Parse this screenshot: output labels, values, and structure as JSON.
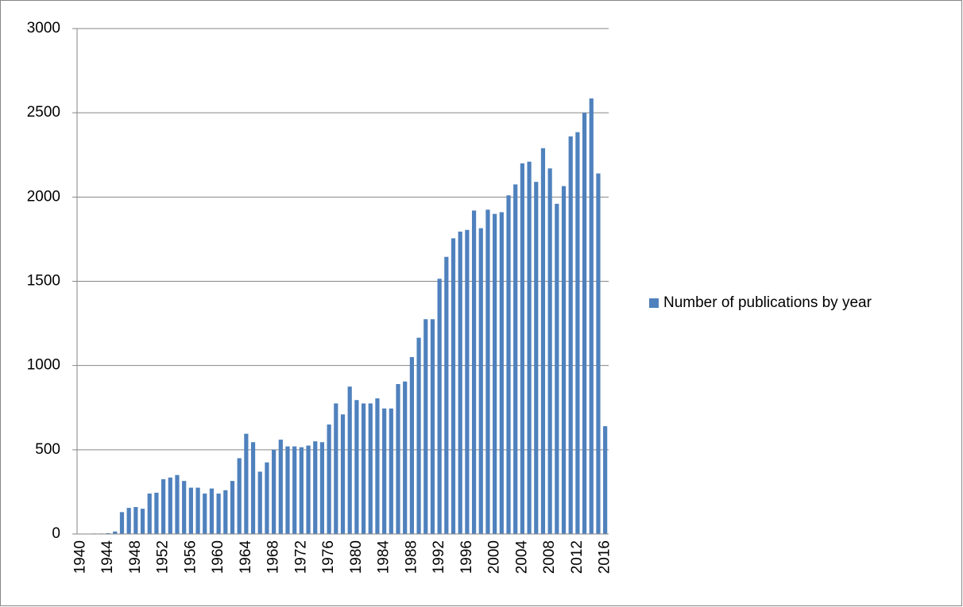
{
  "chart_data": {
    "type": "bar",
    "categories": [
      "1940",
      null,
      null,
      null,
      "1944",
      null,
      null,
      null,
      "1948",
      null,
      null,
      null,
      "1952",
      null,
      null,
      null,
      "1956",
      null,
      null,
      null,
      "1960",
      null,
      null,
      null,
      "1964",
      null,
      null,
      null,
      "1968",
      null,
      null,
      null,
      "1972",
      null,
      null,
      null,
      "1976",
      null,
      null,
      null,
      "1980",
      null,
      null,
      null,
      "1984",
      null,
      null,
      null,
      "1988",
      null,
      null,
      null,
      "1992",
      null,
      null,
      null,
      "1996",
      null,
      null,
      null,
      "2000",
      null,
      null,
      null,
      "2004",
      null,
      null,
      null,
      "2008",
      null,
      null,
      null,
      "2012",
      null,
      null,
      null,
      "2016"
    ],
    "series": [
      {
        "name": "Number of publications by year",
        "color": "#4f81bd",
        "values": [
          2,
          2,
          3,
          3,
          5,
          15,
          130,
          155,
          160,
          150,
          240,
          245,
          325,
          335,
          350,
          315,
          275,
          275,
          240,
          270,
          240,
          260,
          315,
          450,
          595,
          545,
          370,
          425,
          500,
          560,
          520,
          520,
          515,
          525,
          550,
          545,
          650,
          775,
          710,
          875,
          795,
          775,
          775,
          805,
          745,
          745,
          890,
          905,
          1050,
          1165,
          1275,
          1275,
          1515,
          1645,
          1755,
          1795,
          1805,
          1920,
          1815,
          1925,
          1900,
          1910,
          2010,
          2075,
          2200,
          2210,
          2090,
          2290,
          2170,
          1960,
          2065,
          2360,
          2385,
          2500,
          2585,
          2140,
          640
        ]
      }
    ],
    "ylim": [
      0,
      3000
    ],
    "yticks": [
      0,
      500,
      1000,
      1500,
      2000,
      2500,
      3000
    ],
    "grid": true,
    "legend": "right"
  }
}
